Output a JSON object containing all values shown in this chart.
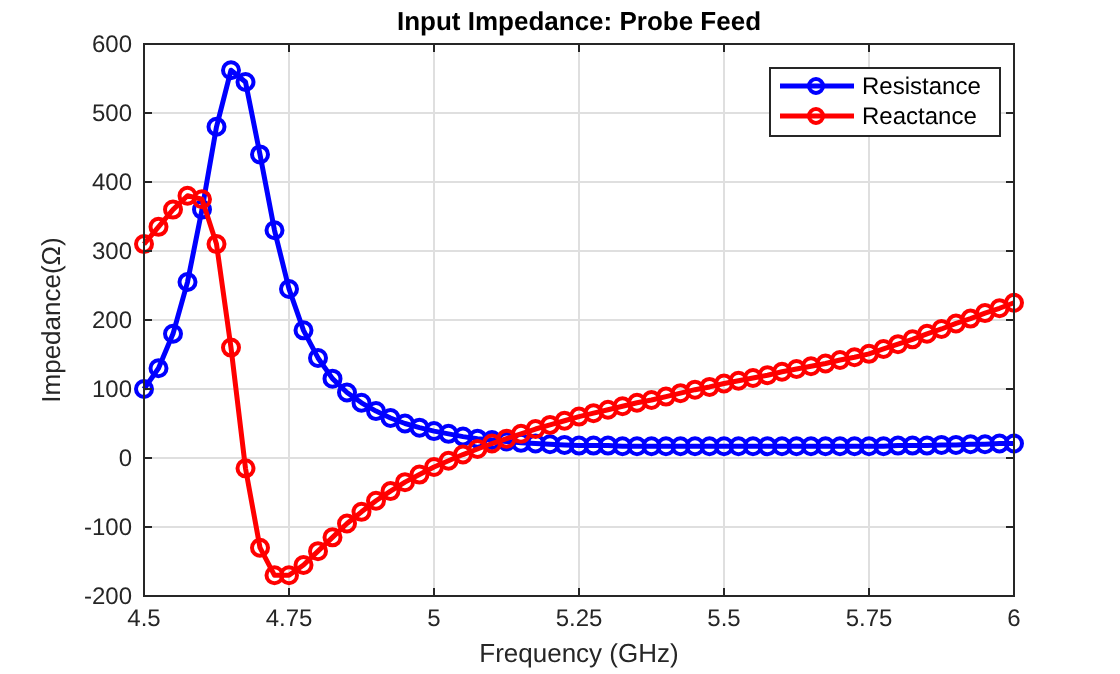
{
  "chart_data": {
    "type": "line",
    "title": "Input Impedance: Probe Feed",
    "xlabel": "Frequency (GHz)",
    "ylabel": "Impedance(Ω)",
    "x": [
      4.5,
      4.525,
      4.55,
      4.575,
      4.6,
      4.625,
      4.65,
      4.675,
      4.7,
      4.725,
      4.75,
      4.775,
      4.8,
      4.825,
      4.85,
      4.875,
      4.9,
      4.925,
      4.95,
      4.975,
      5,
      5.025,
      5.05,
      5.075,
      5.1,
      5.125,
      5.15,
      5.175,
      5.2,
      5.225,
      5.25,
      5.275,
      5.3,
      5.325,
      5.35,
      5.375,
      5.4,
      5.425,
      5.45,
      5.475,
      5.5,
      5.525,
      5.55,
      5.575,
      5.6,
      5.625,
      5.65,
      5.675,
      5.7,
      5.725,
      5.75,
      5.775,
      5.8,
      5.825,
      5.85,
      5.875,
      5.9,
      5.925,
      5.95,
      5.975,
      6
    ],
    "series": [
      {
        "name": "Resistance",
        "color": "#0000ff",
        "values": [
          100,
          130,
          180,
          255,
          360,
          480,
          562,
          545,
          440,
          330,
          245,
          185,
          145,
          115,
          95,
          80,
          68,
          58,
          50,
          44,
          39,
          35,
          31,
          28,
          26,
          24,
          22,
          21,
          20,
          19,
          18,
          18,
          18,
          17,
          17,
          17,
          17,
          17,
          17,
          17,
          17,
          17,
          17,
          17,
          17,
          17,
          17,
          17,
          17,
          17,
          17,
          17,
          18,
          18,
          18,
          19,
          19,
          20,
          20,
          21,
          21
        ]
      },
      {
        "name": "Reactance",
        "color": "#ff0000",
        "values": [
          310,
          335,
          360,
          380,
          375,
          310,
          160,
          -15,
          -130,
          -170,
          -170,
          -155,
          -135,
          -115,
          -95,
          -78,
          -62,
          -48,
          -35,
          -24,
          -13,
          -4,
          5,
          13,
          21,
          28,
          35,
          42,
          48,
          54,
          60,
          65,
          70,
          75,
          80,
          84,
          89,
          94,
          99,
          103,
          108,
          112,
          116,
          120,
          125,
          129,
          133,
          137,
          142,
          146,
          151,
          158,
          165,
          172,
          180,
          187,
          195,
          202,
          210,
          217,
          225
        ]
      }
    ],
    "xlim": [
      4.5,
      6
    ],
    "xticks": [
      4.5,
      {
        "value": 4.75,
        "label": "4.75"
      },
      5,
      {
        "value": 5.25,
        "label": "5.25"
      },
      5.5,
      {
        "value": 5.75,
        "label": "5.75"
      },
      6
    ],
    "ylim": [
      -200,
      600
    ],
    "yticks": [
      -200,
      -100,
      0,
      100,
      200,
      300,
      400,
      500,
      600
    ],
    "grid": true,
    "legend": "top right",
    "marker": "circle",
    "line_style": "solid"
  }
}
